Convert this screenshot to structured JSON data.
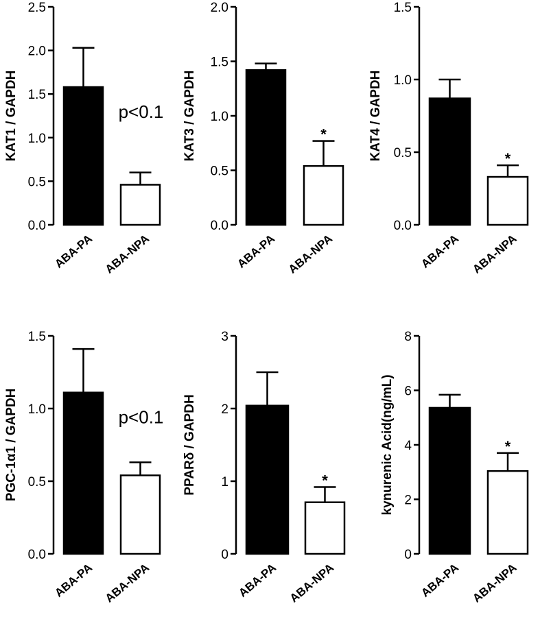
{
  "colors": {
    "bar_a": "#000000",
    "bar_b": "#ffffff",
    "stroke": "#000000"
  },
  "chart_data": [
    {
      "type": "bar",
      "categories": [
        "ABA-PA",
        "ABA-NPA"
      ],
      "values": [
        1.58,
        0.46
      ],
      "error": [
        0.45,
        0.14
      ],
      "ylabel": "KAT1 / GAPDH",
      "ylim": [
        0,
        2.5
      ],
      "yticks": [
        "0.0",
        "0.5",
        "1.0",
        "1.5",
        "2.0",
        "2.5"
      ],
      "annotation": "p<0.1",
      "significance": [
        "",
        ""
      ]
    },
    {
      "type": "bar",
      "categories": [
        "ABA-PA",
        "ABA-NPA"
      ],
      "values": [
        1.42,
        0.54
      ],
      "error": [
        0.06,
        0.23
      ],
      "ylabel": "KAT3 / GAPDH",
      "ylim": [
        0,
        2.0
      ],
      "yticks": [
        "0.0",
        "0.5",
        "1.0",
        "1.5",
        "2.0"
      ],
      "annotation": "",
      "significance": [
        "",
        "*"
      ]
    },
    {
      "type": "bar",
      "categories": [
        "ABA-PA",
        "ABA-NPA"
      ],
      "values": [
        0.87,
        0.33
      ],
      "error": [
        0.13,
        0.08
      ],
      "ylabel": "KAT4 / GAPDH",
      "ylim": [
        0,
        1.5
      ],
      "yticks": [
        "0.0",
        "0.5",
        "1.0",
        "1.5"
      ],
      "annotation": "",
      "significance": [
        "",
        "*"
      ]
    },
    {
      "type": "bar",
      "categories": [
        "ABA-PA",
        "ABA-NPA"
      ],
      "values": [
        1.11,
        0.54
      ],
      "error": [
        0.3,
        0.09
      ],
      "ylabel": "PGC-1α1 / GAPDH",
      "ylim": [
        0,
        1.5
      ],
      "yticks": [
        "0.0",
        "0.5",
        "1.0",
        "1.5"
      ],
      "annotation": "p<0.1",
      "significance": [
        "",
        ""
      ]
    },
    {
      "type": "bar",
      "categories": [
        "ABA-PA",
        "ABA-NPA"
      ],
      "values": [
        2.04,
        0.71
      ],
      "error": [
        0.46,
        0.21
      ],
      "ylabel": "PPARδ / GAPDH",
      "ylim": [
        0,
        3
      ],
      "yticks": [
        "0",
        "1",
        "2",
        "3"
      ],
      "annotation": "",
      "significance": [
        "",
        "*"
      ]
    },
    {
      "type": "bar",
      "categories": [
        "ABA-PA",
        "ABA-NPA"
      ],
      "values": [
        5.36,
        3.04
      ],
      "error": [
        0.48,
        0.66
      ],
      "ylabel": "kynurenic Acid(ng/mL)",
      "ylim": [
        0,
        8
      ],
      "yticks": [
        "0",
        "2",
        "4",
        "6",
        "8"
      ],
      "annotation": "",
      "significance": [
        "",
        "*"
      ]
    }
  ]
}
